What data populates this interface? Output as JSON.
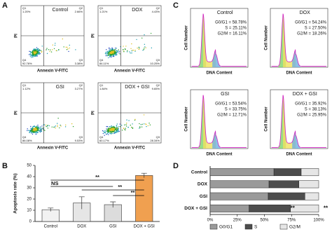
{
  "panel_a": {
    "label": "A",
    "x_label": "Annexin V-FITC",
    "y_label": "PI",
    "plots": [
      {
        "title": "Control",
        "quadrants": [
          {
            "name": "Q1",
            "value": "1.20%"
          },
          {
            "name": "Q2",
            "value": "2.66%"
          },
          {
            "name": "Q4",
            "value": "92.76%"
          },
          {
            "name": "Q3",
            "value": "3.38%"
          }
        ]
      },
      {
        "title": "DOX",
        "quadrants": [
          {
            "name": "Q1",
            "value": "1.21%"
          },
          {
            "name": "Q2",
            "value": "4.43%"
          },
          {
            "name": "Q4",
            "value": "84.11%"
          },
          {
            "name": "Q3",
            "value": "10.25%"
          }
        ]
      },
      {
        "title": "GSI",
        "quadrants": [
          {
            "name": "Q1",
            "value": "1.12%"
          },
          {
            "name": "Q2",
            "value": "3.27%"
          },
          {
            "name": "Q4",
            "value": "86.08%"
          },
          {
            "name": "Q3",
            "value": "9.53%"
          }
        ]
      },
      {
        "title": "DOX + GSI",
        "quadrants": [
          {
            "name": "Q1",
            "value": "1.84%"
          },
          {
            "name": "Q2",
            "value": "9.65%"
          },
          {
            "name": "Q4",
            "value": "60.17%"
          },
          {
            "name": "Q3",
            "value": "28.34%"
          }
        ]
      }
    ]
  },
  "panel_c": {
    "label": "C",
    "x_label": "DNA Content",
    "y_label": "Cell Number",
    "plots": [
      {
        "title": "Control",
        "stats": [
          "G0/G1 = 58.78%",
          "S = 25.11%",
          "G2/M = 16.11%"
        ]
      },
      {
        "title": "DOX",
        "stats": [
          "G0/G1 = 54.24%",
          "S = 27.50%",
          "G2/M = 18.26%"
        ]
      },
      {
        "title": "GSI",
        "stats": [
          "G0/G1 = 53.54%",
          "S = 33.75%",
          "G2/M = 12.71%"
        ]
      },
      {
        "title": "DOX + GSI",
        "stats": [
          "G0/G1 = 35.92%",
          "S = 38.13%",
          "G2/M = 25.95%"
        ]
      }
    ]
  },
  "chart_data": [
    {
      "type": "bar",
      "panel_label": "B",
      "y_label": "Apoptosis rate (%)",
      "categories": [
        "Control",
        "DOX",
        "GSI",
        "DOX + GSI"
      ],
      "values": [
        10.5,
        16.5,
        15,
        41
      ],
      "errors": [
        1.5,
        5.5,
        2.5,
        2
      ],
      "colors": [
        "#f2f2f2",
        "#e6e6e6",
        "#dcdcdc",
        "#f0a050"
      ],
      "ylim": [
        0,
        50
      ],
      "yticks": [
        0,
        10,
        20,
        30,
        40,
        50
      ],
      "annotations": [
        "NS",
        "**",
        "**",
        "**"
      ]
    },
    {
      "type": "stacked_barh",
      "panel_label": "D",
      "categories": [
        "Control",
        "DOX",
        "GSI",
        "DOX + GSI"
      ],
      "series": [
        {
          "name": "G0/G1",
          "color": "#9a9a9a",
          "values": [
            58.78,
            54.24,
            53.54,
            35.92
          ]
        },
        {
          "name": "S",
          "color": "#4d4d4d",
          "values": [
            25.11,
            27.5,
            33.75,
            38.13
          ]
        },
        {
          "name": "G2/M",
          "color": "#e6e6e6",
          "values": [
            16.11,
            18.26,
            12.71,
            25.95
          ]
        }
      ],
      "xlim": [
        0,
        100
      ],
      "xticks": [
        {
          "value": 0,
          "label": "0%"
        },
        {
          "value": 25,
          "label": "25%"
        },
        {
          "value": 50,
          "label": "50%"
        },
        {
          "value": 75,
          "label": "75%"
        },
        {
          "value": 100,
          "label": "100%"
        }
      ],
      "annotations": [
        "**",
        "**"
      ]
    }
  ]
}
